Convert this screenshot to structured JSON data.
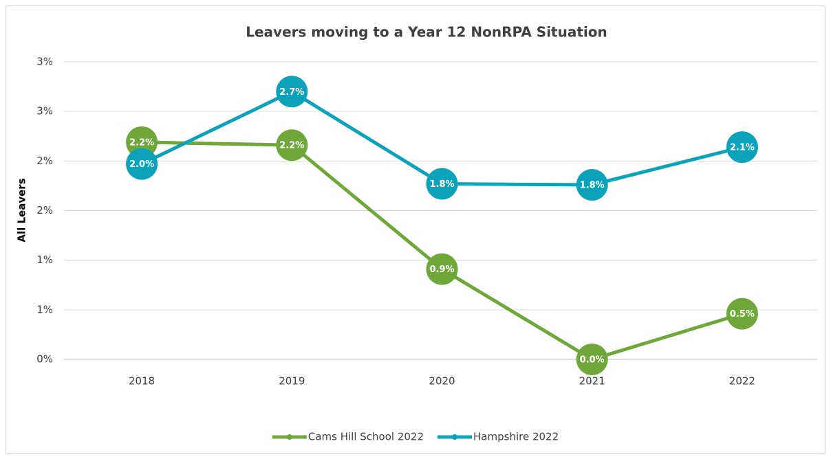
{
  "chart_data": {
    "type": "line",
    "title": "Leavers moving to a Year 12 NonRPA Situation",
    "y_label": "All Leavers",
    "categories": [
      "2018",
      "2019",
      "2020",
      "2021",
      "2022"
    ],
    "series": [
      {
        "name": "Cams Hill School 2022",
        "color": "#70a73a",
        "values": [
          2.19,
          2.16,
          0.91,
          0,
          0.46
        ],
        "value_labels": [
          "2.2%",
          "2.2%",
          "0.9%",
          "0.0%",
          "0.5%"
        ]
      },
      {
        "name": "Hampshire 2022",
        "color": "#0ca3ba",
        "values": [
          1.97,
          2.7,
          1.77,
          1.76,
          2.14
        ],
        "value_labels": [
          "2.0%",
          "2.7%",
          "1.8%",
          "1.8%",
          "2.1%"
        ]
      }
    ],
    "ylim": [
      0,
      3
    ],
    "yticks": [
      {
        "value": 0,
        "label": "0%"
      },
      {
        "value": 0.5,
        "label": "1%"
      },
      {
        "value": 1,
        "label": "1%"
      },
      {
        "value": 1.5,
        "label": "2%"
      },
      {
        "value": 2,
        "label": "2%"
      },
      {
        "value": 2.5,
        "label": "3%"
      },
      {
        "value": 3,
        "label": "3%"
      }
    ],
    "grid": true,
    "legend": "bottom"
  }
}
